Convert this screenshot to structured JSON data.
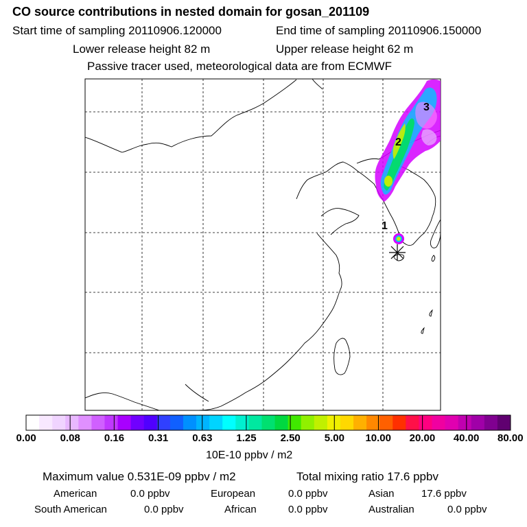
{
  "header": {
    "title": "CO  source contributions in nested domain for gosan_201109",
    "start_time": "Start time of sampling 20110906.120000",
    "end_time": "End time of sampling 20110906.150000",
    "lower_height": "Lower release height   82 m",
    "upper_height": "Upper release height   62 m",
    "tracer_note": "Passive tracer used, meteorological data are from ECMWF"
  },
  "map": {
    "labels": [
      "1",
      "2",
      "3"
    ],
    "colors": {
      "land_line": "#000000",
      "grid_line": "#000000",
      "plume_magenta": "#d400ff",
      "plume_green": "#00e060",
      "plume_yellow": "#c8f000"
    }
  },
  "colorbar": {
    "unit": "10E-10 ppbv / m2",
    "ticks": [
      "0.00",
      "0.08",
      "0.16",
      "0.31",
      "0.63",
      "1.25",
      "2.50",
      "5.00",
      "10.00",
      "20.00",
      "40.00",
      "80.00"
    ],
    "colors": [
      "#ffffff",
      "#f8e8ff",
      "#f0d4ff",
      "#e8b8ff",
      "#e090ff",
      "#d060ff",
      "#c038ff",
      "#a800ff",
      "#7000ff",
      "#5000ff",
      "#3040ff",
      "#1060ff",
      "#0090ff",
      "#00b4ff",
      "#00d4ff",
      "#00ffff",
      "#00f0d0",
      "#00e8a0",
      "#00e070",
      "#00d840",
      "#40e800",
      "#90f000",
      "#c0f000",
      "#f0f000",
      "#ffd800",
      "#ffb000",
      "#ff8800",
      "#ff6000",
      "#ff3000",
      "#ff1048",
      "#ff0080",
      "#f000a0",
      "#e000b0",
      "#c000b0",
      "#a000a8",
      "#800090",
      "#600070"
    ]
  },
  "summary": {
    "max_value": "Maximum value  0.531E-09 ppbv / m2",
    "total_mixing": "Total mixing ratio       17.6 ppbv"
  },
  "regions": [
    {
      "name": "American",
      "value": "0.0 ppbv"
    },
    {
      "name": "European",
      "value": "0.0 ppbv"
    },
    {
      "name": "Asian",
      "value": "17.6 ppbv"
    },
    {
      "name": "South American",
      "value": "0.0 ppbv"
    },
    {
      "name": "African",
      "value": "0.0 ppbv"
    },
    {
      "name": "Australian",
      "value": "0.0 ppbv"
    }
  ]
}
